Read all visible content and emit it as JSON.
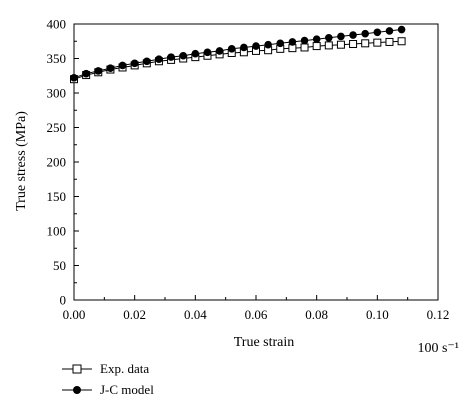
{
  "chart_data": {
    "type": "line",
    "xlabel": "True strain",
    "ylabel": "True stress (MPa)",
    "annotation": "100 s⁻¹",
    "xlim": [
      0,
      0.12
    ],
    "ylim": [
      0,
      400
    ],
    "x_ticks": [
      "0.00",
      "0.02",
      "0.04",
      "0.06",
      "0.08",
      "0.10",
      "0.12"
    ],
    "y_ticks": [
      "0",
      "50",
      "100",
      "150",
      "200",
      "250",
      "300",
      "350",
      "400"
    ],
    "grid": false,
    "legend_position": "bottom-left",
    "series": [
      {
        "name": "Exp. data",
        "marker": "open-square",
        "x": [
          0.0,
          0.004,
          0.008,
          0.012,
          0.016,
          0.02,
          0.024,
          0.028,
          0.032,
          0.036,
          0.04,
          0.044,
          0.048,
          0.052,
          0.056,
          0.06,
          0.064,
          0.068,
          0.072,
          0.076,
          0.08,
          0.084,
          0.088,
          0.092,
          0.096,
          0.1,
          0.104,
          0.108
        ],
        "y": [
          320,
          326,
          330,
          334,
          337,
          340,
          343,
          346,
          348,
          350,
          352,
          354,
          356,
          358,
          359,
          361,
          362,
          364,
          365,
          366,
          368,
          369,
          370,
          371,
          372,
          373,
          374,
          375
        ]
      },
      {
        "name": "J-C model",
        "marker": "filled-circle",
        "x": [
          0.0,
          0.004,
          0.008,
          0.012,
          0.016,
          0.02,
          0.024,
          0.028,
          0.032,
          0.036,
          0.04,
          0.044,
          0.048,
          0.052,
          0.056,
          0.06,
          0.064,
          0.068,
          0.072,
          0.076,
          0.08,
          0.084,
          0.088,
          0.092,
          0.096,
          0.1,
          0.104,
          0.108
        ],
        "y": [
          322,
          328,
          332,
          336,
          340,
          343,
          346,
          349,
          352,
          354,
          357,
          359,
          361,
          364,
          366,
          368,
          370,
          372,
          374,
          376,
          378,
          380,
          382,
          384,
          386,
          388,
          390,
          392
        ]
      }
    ]
  }
}
